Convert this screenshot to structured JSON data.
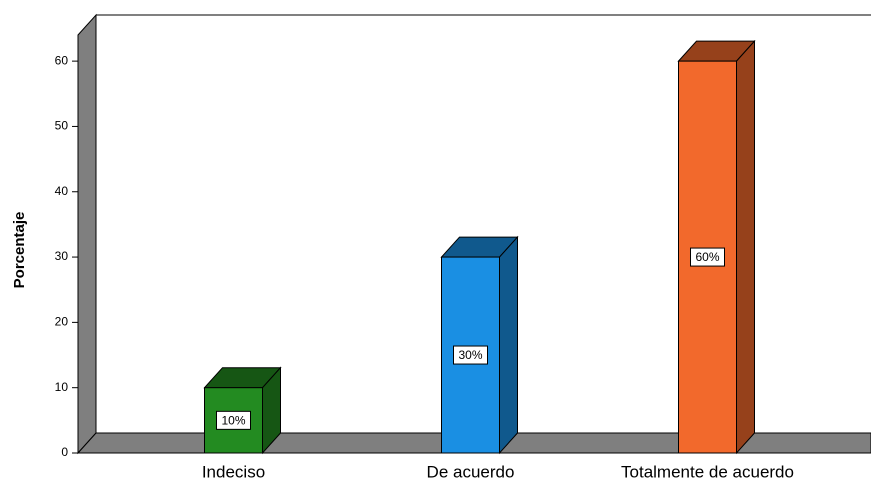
{
  "chart_data": {
    "type": "bar3d",
    "ylabel": "Porcentaje",
    "categories": [
      "Indeciso",
      "De acuerdo",
      "Totalmente de acuerdo"
    ],
    "values": [
      10,
      30,
      60
    ],
    "value_labels": [
      "10%",
      "30%",
      "60%"
    ],
    "colors": [
      "#238b21",
      "#1a8fe3",
      "#f2692c"
    ],
    "ylim": [
      0,
      64
    ],
    "yticks": [
      0,
      10,
      20,
      30,
      40,
      50,
      60
    ]
  }
}
